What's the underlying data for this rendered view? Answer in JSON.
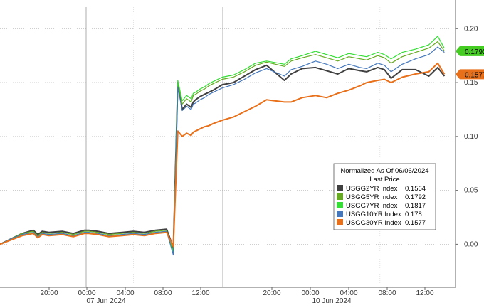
{
  "chart_data": {
    "type": "line",
    "title": "",
    "xlabel": "",
    "ylabel": "",
    "ylim": [
      -0.04,
      0.22
    ],
    "yticks": [
      "0.20",
      "0.15",
      "0.10",
      "0.05",
      "0.00"
    ],
    "ytick_values": [
      0.2,
      0.15,
      0.1,
      0.05,
      0.0
    ],
    "xticks": [
      "20:00",
      "00:00",
      "04:00",
      "08:00",
      "12:00",
      "20:00",
      "00:00",
      "04:00",
      "08:00",
      "12:00"
    ],
    "xdates": [
      "07 Jun 2024",
      "10 Jun 2024"
    ],
    "legend": {
      "title": "Normalized As Of 06/06/2024",
      "subtitle": "Last Price",
      "placement": "lower-right",
      "entries": [
        {
          "label": "USGG2YR Index",
          "value": "0.1564"
        },
        {
          "label": "USGG5YR Index",
          "value": "0.1792"
        },
        {
          "label": "USGG7YR Index",
          "value": "0.1817"
        },
        {
          "label": "USGG10YR Index",
          "value": "0.178"
        },
        {
          "label": "USGG30YR Index",
          "value": "0.1577"
        }
      ]
    },
    "last_value_tags": [
      {
        "text": "0.1792",
        "color": "#44cc22"
      },
      {
        "text": "0.1577",
        "color": "#e8701a"
      }
    ],
    "series": [
      {
        "name": "USGG2YR Index",
        "color": "#404040",
        "x": [
          0,
          5,
          10,
          15,
          17,
          19,
          22,
          28,
          33,
          38,
          40,
          44,
          49,
          55,
          60,
          65,
          70,
          75,
          78,
          80,
          82,
          84,
          86,
          87,
          88,
          90,
          92,
          94,
          96,
          100,
          105,
          110,
          115,
          120,
          128,
          131,
          136,
          142,
          147,
          152,
          157,
          162,
          165,
          170,
          173,
          176,
          181,
          187,
          193,
          197,
          200
        ],
        "y": [
          0.0,
          0.005,
          0.01,
          0.013,
          0.009,
          0.012,
          0.011,
          0.012,
          0.01,
          0.013,
          0.013,
          0.012,
          0.01,
          0.011,
          0.012,
          0.011,
          0.013,
          0.014,
          -0.003,
          0.15,
          0.125,
          0.13,
          0.127,
          0.132,
          0.134,
          0.137,
          0.139,
          0.141,
          0.143,
          0.148,
          0.15,
          0.156,
          0.162,
          0.166,
          0.152,
          0.158,
          0.163,
          0.164,
          0.161,
          0.158,
          0.163,
          0.161,
          0.16,
          0.164,
          0.162,
          0.154,
          0.162,
          0.162,
          0.156,
          0.164,
          0.156
        ]
      },
      {
        "name": "USGG5YR Index",
        "color": "#66aa22",
        "x": [
          0,
          5,
          10,
          15,
          17,
          19,
          22,
          28,
          33,
          38,
          40,
          44,
          49,
          55,
          60,
          65,
          70,
          75,
          78,
          80,
          82,
          84,
          86,
          87,
          88,
          90,
          92,
          94,
          96,
          100,
          105,
          110,
          115,
          120,
          128,
          131,
          136,
          142,
          147,
          152,
          157,
          162,
          165,
          170,
          173,
          176,
          181,
          187,
          193,
          197,
          200
        ],
        "y": [
          0.0,
          0.005,
          0.01,
          0.012,
          0.008,
          0.011,
          0.01,
          0.011,
          0.009,
          0.012,
          0.012,
          0.011,
          0.009,
          0.01,
          0.011,
          0.01,
          0.012,
          0.013,
          -0.006,
          0.15,
          0.13,
          0.135,
          0.132,
          0.138,
          0.139,
          0.142,
          0.144,
          0.147,
          0.149,
          0.153,
          0.155,
          0.16,
          0.166,
          0.169,
          0.165,
          0.17,
          0.173,
          0.176,
          0.173,
          0.17,
          0.174,
          0.172,
          0.171,
          0.175,
          0.173,
          0.168,
          0.174,
          0.178,
          0.182,
          0.188,
          0.1792
        ]
      },
      {
        "name": "USGG7YR Index",
        "color": "#33dd33",
        "x": [
          0,
          5,
          10,
          15,
          17,
          19,
          22,
          28,
          33,
          38,
          40,
          44,
          49,
          55,
          60,
          65,
          70,
          75,
          78,
          80,
          82,
          84,
          86,
          87,
          88,
          90,
          92,
          94,
          96,
          100,
          105,
          110,
          115,
          120,
          128,
          131,
          136,
          142,
          147,
          152,
          157,
          162,
          165,
          170,
          173,
          176,
          181,
          187,
          193,
          197,
          200
        ],
        "y": [
          0.0,
          0.005,
          0.009,
          0.011,
          0.007,
          0.01,
          0.009,
          0.01,
          0.008,
          0.011,
          0.011,
          0.01,
          0.008,
          0.009,
          0.01,
          0.009,
          0.011,
          0.012,
          -0.008,
          0.152,
          0.133,
          0.138,
          0.135,
          0.14,
          0.141,
          0.144,
          0.146,
          0.149,
          0.151,
          0.155,
          0.157,
          0.162,
          0.168,
          0.17,
          0.167,
          0.172,
          0.175,
          0.179,
          0.176,
          0.173,
          0.177,
          0.175,
          0.174,
          0.178,
          0.176,
          0.172,
          0.178,
          0.181,
          0.185,
          0.193,
          0.1817
        ]
      },
      {
        "name": "USGG10YR Index",
        "color": "#4477bb",
        "x": [
          0,
          5,
          10,
          15,
          17,
          19,
          22,
          28,
          33,
          38,
          40,
          44,
          49,
          55,
          60,
          65,
          70,
          75,
          78,
          80,
          82,
          84,
          86,
          87,
          88,
          90,
          92,
          94,
          96,
          100,
          105,
          110,
          115,
          120,
          128,
          131,
          136,
          142,
          147,
          152,
          157,
          162,
          165,
          170,
          173,
          176,
          181,
          187,
          193,
          197,
          200
        ],
        "y": [
          0.0,
          0.005,
          0.009,
          0.011,
          0.007,
          0.01,
          0.009,
          0.01,
          0.008,
          0.011,
          0.011,
          0.01,
          0.008,
          0.009,
          0.01,
          0.009,
          0.011,
          0.012,
          -0.01,
          0.146,
          0.124,
          0.128,
          0.125,
          0.13,
          0.131,
          0.134,
          0.136,
          0.139,
          0.141,
          0.145,
          0.148,
          0.153,
          0.159,
          0.163,
          0.156,
          0.162,
          0.165,
          0.17,
          0.167,
          0.163,
          0.167,
          0.164,
          0.163,
          0.168,
          0.166,
          0.16,
          0.167,
          0.172,
          0.176,
          0.183,
          0.178
        ]
      },
      {
        "name": "USGG30YR Index",
        "color": "#e8701a",
        "x": [
          0,
          5,
          10,
          15,
          17,
          19,
          22,
          28,
          33,
          38,
          40,
          44,
          49,
          55,
          60,
          65,
          70,
          75,
          78,
          80,
          82,
          84,
          86,
          87,
          88,
          90,
          92,
          94,
          96,
          100,
          105,
          110,
          115,
          120,
          128,
          131,
          136,
          142,
          147,
          152,
          157,
          162,
          165,
          170,
          173,
          176,
          181,
          187,
          193,
          197,
          200
        ],
        "y": [
          0.0,
          0.004,
          0.008,
          0.01,
          0.006,
          0.009,
          0.008,
          0.009,
          0.007,
          0.01,
          0.01,
          0.009,
          0.007,
          0.008,
          0.009,
          0.008,
          0.01,
          0.011,
          -0.002,
          0.105,
          0.1,
          0.103,
          0.101,
          0.104,
          0.105,
          0.107,
          0.109,
          0.11,
          0.112,
          0.115,
          0.118,
          0.123,
          0.128,
          0.134,
          0.132,
          0.132,
          0.136,
          0.138,
          0.136,
          0.14,
          0.143,
          0.147,
          0.15,
          0.152,
          0.153,
          0.15,
          0.155,
          0.158,
          0.16,
          0.168,
          0.1577
        ]
      }
    ]
  }
}
